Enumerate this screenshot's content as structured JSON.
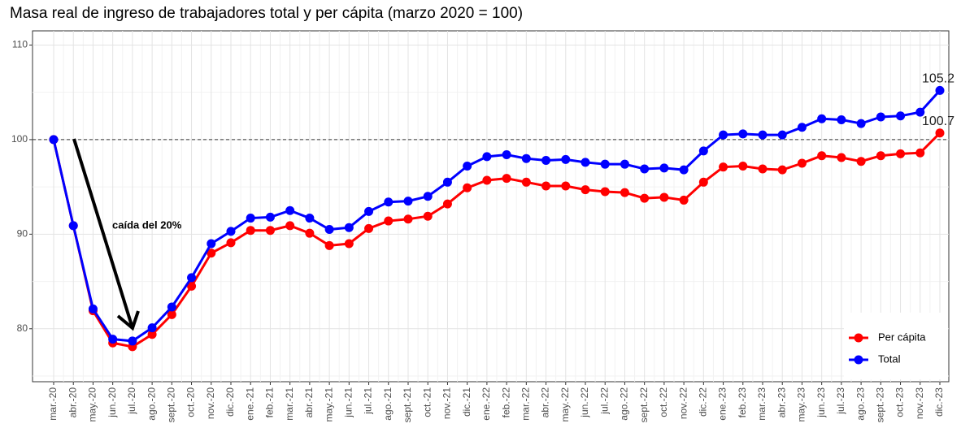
{
  "chart_data": {
    "type": "line",
    "title": "Masa real de ingreso de trabajadores total y per cápita (marzo 2020 = 100)",
    "categories": [
      "mar.-20",
      "abr.-20",
      "may.-20",
      "jun.-20",
      "jul.-20",
      "ago.-20",
      "sept.-20",
      "oct.-20",
      "nov.-20",
      "dic.-20",
      "ene.-21",
      "feb.-21",
      "mar.-21",
      "abr.-21",
      "may.-21",
      "jun.-21",
      "jul.-21",
      "ago.-21",
      "sept.-21",
      "oct.-21",
      "nov.-21",
      "dic.-21",
      "ene.-22",
      "feb.-22",
      "mar.-22",
      "abr.-22",
      "may.-22",
      "jun.-22",
      "jul.-22",
      "ago.-22",
      "sept.-22",
      "oct.-22",
      "nov.-22",
      "dic.-22",
      "ene.-23",
      "feb.-23",
      "mar.-23",
      "abr.-23",
      "may.-23",
      "jun.-23",
      "jul.-23",
      "ago.-23",
      "sept.-23",
      "oct.-23",
      "nov.-23",
      "dic.-23"
    ],
    "series": [
      {
        "name": "Per cápita",
        "color": "#ff0000",
        "values": [
          100,
          90.9,
          81.9,
          78.5,
          78.1,
          79.4,
          81.5,
          84.5,
          88.0,
          89.1,
          90.4,
          90.4,
          90.9,
          90.1,
          88.8,
          89.0,
          90.6,
          91.4,
          91.6,
          91.9,
          93.2,
          94.9,
          95.7,
          95.9,
          95.5,
          95.1,
          95.1,
          94.7,
          94.5,
          94.4,
          93.8,
          93.9,
          93.6,
          95.5,
          97.1,
          97.2,
          96.9,
          96.8,
          97.5,
          98.3,
          98.1,
          97.7,
          98.3,
          98.5,
          98.6,
          100.7
        ]
      },
      {
        "name": "Total",
        "color": "#0000ff",
        "values": [
          100,
          90.9,
          82.1,
          78.9,
          78.7,
          80.1,
          82.3,
          85.4,
          89.0,
          90.3,
          91.7,
          91.8,
          92.5,
          91.7,
          90.5,
          90.7,
          92.4,
          93.4,
          93.5,
          94.0,
          95.5,
          97.2,
          98.2,
          98.4,
          98.0,
          97.8,
          97.9,
          97.6,
          97.4,
          97.4,
          96.9,
          97.0,
          96.8,
          98.8,
          100.5,
          100.6,
          100.5,
          100.5,
          101.3,
          102.2,
          102.1,
          101.7,
          102.4,
          102.5,
          102.9,
          105.2
        ]
      }
    ],
    "ylim": [
      74.4,
      111.5
    ],
    "yticks": [
      80,
      90,
      100,
      110
    ],
    "grid": true,
    "reference_line": 100,
    "annotation": "caída del 20%",
    "legend": "bottom-right"
  }
}
